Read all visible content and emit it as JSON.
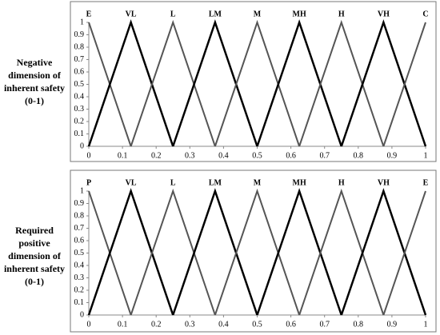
{
  "chart_data": [
    {
      "type": "line",
      "y_label": "Negative dimension of inherent safety (0-1)",
      "xlim": [
        0,
        1
      ],
      "ylim": [
        0,
        1
      ],
      "xticks": [
        0,
        0.1,
        0.2,
        0.3,
        0.4,
        0.5,
        0.6,
        0.7,
        0.8,
        0.9,
        1
      ],
      "yticks": [
        0,
        0.1,
        0.2,
        0.3,
        0.4,
        0.5,
        0.6,
        0.7,
        0.8,
        0.9,
        1
      ],
      "series": [
        {
          "name": "E",
          "color": "#555555",
          "x": [
            0,
            0.125
          ],
          "values": [
            1,
            0
          ]
        },
        {
          "name": "VL",
          "color": "#000000",
          "x": [
            0,
            0.125,
            0.25
          ],
          "values": [
            0,
            1,
            0
          ]
        },
        {
          "name": "L",
          "color": "#555555",
          "x": [
            0.125,
            0.25,
            0.375
          ],
          "values": [
            0,
            1,
            0
          ]
        },
        {
          "name": "LM",
          "color": "#000000",
          "x": [
            0.25,
            0.375,
            0.5
          ],
          "values": [
            0,
            1,
            0
          ]
        },
        {
          "name": "M",
          "color": "#555555",
          "x": [
            0.375,
            0.5,
            0.625
          ],
          "values": [
            0,
            1,
            0
          ]
        },
        {
          "name": "MH",
          "color": "#000000",
          "x": [
            0.5,
            0.625,
            0.75
          ],
          "values": [
            0,
            1,
            0
          ]
        },
        {
          "name": "H",
          "color": "#555555",
          "x": [
            0.625,
            0.75,
            0.875
          ],
          "values": [
            0,
            1,
            0
          ]
        },
        {
          "name": "VH",
          "color": "#000000",
          "x": [
            0.75,
            0.875,
            1
          ],
          "values": [
            0,
            1,
            0
          ]
        },
        {
          "name": "C",
          "color": "#555555",
          "x": [
            0.875,
            1
          ],
          "values": [
            0,
            1
          ]
        }
      ]
    },
    {
      "type": "line",
      "y_label": "Required positive dimension of inherent safety (0-1)",
      "xlim": [
        0,
        1
      ],
      "ylim": [
        0,
        1
      ],
      "xticks": [
        0,
        0.1,
        0.2,
        0.3,
        0.4,
        0.5,
        0.6,
        0.7,
        0.8,
        0.9,
        1
      ],
      "yticks": [
        0,
        0.1,
        0.2,
        0.3,
        0.4,
        0.5,
        0.6,
        0.7,
        0.8,
        0.9,
        1
      ],
      "series": [
        {
          "name": "P",
          "color": "#555555",
          "x": [
            0,
            0.125
          ],
          "values": [
            1,
            0
          ]
        },
        {
          "name": "VL",
          "color": "#000000",
          "x": [
            0,
            0.125,
            0.25
          ],
          "values": [
            0,
            1,
            0
          ]
        },
        {
          "name": "L",
          "color": "#555555",
          "x": [
            0.125,
            0.25,
            0.375
          ],
          "values": [
            0,
            1,
            0
          ]
        },
        {
          "name": "LM",
          "color": "#000000",
          "x": [
            0.25,
            0.375,
            0.5
          ],
          "values": [
            0,
            1,
            0
          ]
        },
        {
          "name": "M",
          "color": "#555555",
          "x": [
            0.375,
            0.5,
            0.625
          ],
          "values": [
            0,
            1,
            0
          ]
        },
        {
          "name": "MH",
          "color": "#000000",
          "x": [
            0.5,
            0.625,
            0.75
          ],
          "values": [
            0,
            1,
            0
          ]
        },
        {
          "name": "H",
          "color": "#555555",
          "x": [
            0.625,
            0.75,
            0.875
          ],
          "values": [
            0,
            1,
            0
          ]
        },
        {
          "name": "VH",
          "color": "#000000",
          "x": [
            0.75,
            0.875,
            1
          ],
          "values": [
            0,
            1,
            0
          ]
        },
        {
          "name": "E",
          "color": "#555555",
          "x": [
            0.875,
            1
          ],
          "values": [
            0,
            1
          ]
        }
      ]
    }
  ]
}
